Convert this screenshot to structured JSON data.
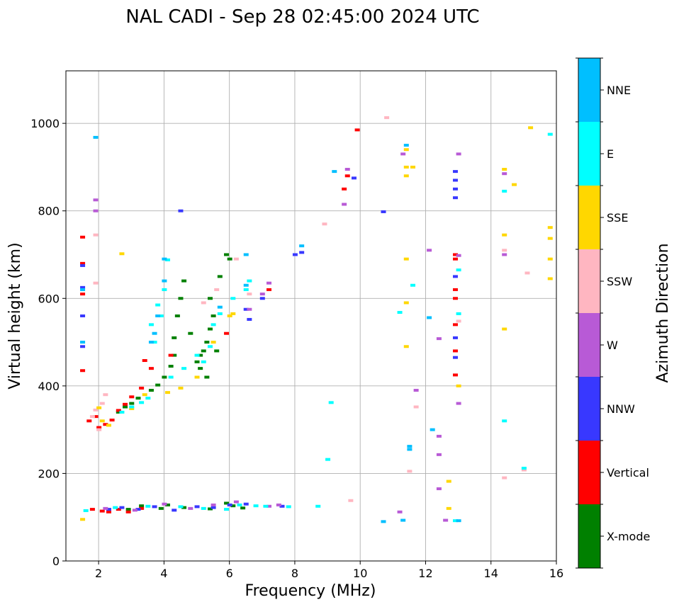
{
  "chart_data": {
    "type": "scatter",
    "title": "NAL CADI - Sep 28 02:45:00 2024 UTC",
    "xlabel": "Frequency (MHz)",
    "ylabel": "Virtual height (km)",
    "xlim": [
      1.0,
      16.0
    ],
    "ylim": [
      0,
      1120
    ],
    "xticks": [
      2,
      4,
      6,
      8,
      10,
      12,
      14,
      16
    ],
    "yticks": [
      0,
      200,
      400,
      600,
      800,
      1000
    ],
    "xtick_labels": [
      "2",
      "4",
      "6",
      "8",
      "10",
      "12",
      "14",
      "16"
    ],
    "ytick_labels": [
      "0",
      "200",
      "400",
      "600",
      "800",
      "1000"
    ],
    "grid": true,
    "colorbar": {
      "label": "Azimuth Direction",
      "categories": [
        "X-mode",
        "Vertical",
        "NNW",
        "W",
        "SSW",
        "SSE",
        "E",
        "NNE"
      ],
      "colors": [
        "#008000",
        "#ff0000",
        "#3838ff",
        "#b85ad6",
        "#ffb6c1",
        "#ffd700",
        "#00ffff",
        "#00bfff"
      ]
    },
    "series": [
      {
        "name": "X-mode",
        "points": [
          [
            2.9,
            118
          ],
          [
            3.3,
            126
          ],
          [
            3.9,
            120
          ],
          [
            4.1,
            128
          ],
          [
            4.6,
            122
          ],
          [
            5.4,
            119
          ],
          [
            5.9,
            132
          ],
          [
            6.1,
            126
          ],
          [
            6.4,
            121
          ],
          [
            2.6,
            340
          ],
          [
            2.8,
            352
          ],
          [
            3.0,
            360
          ],
          [
            3.2,
            372
          ],
          [
            3.6,
            390
          ],
          [
            3.8,
            402
          ],
          [
            4.0,
            420
          ],
          [
            4.2,
            445
          ],
          [
            4.3,
            470
          ],
          [
            4.3,
            510
          ],
          [
            4.4,
            560
          ],
          [
            4.5,
            600
          ],
          [
            4.6,
            640
          ],
          [
            4.8,
            520
          ],
          [
            5.0,
            455
          ],
          [
            5.1,
            470
          ],
          [
            5.2,
            480
          ],
          [
            5.3,
            500
          ],
          [
            5.4,
            530
          ],
          [
            5.5,
            560
          ],
          [
            5.4,
            600
          ],
          [
            5.7,
            650
          ],
          [
            5.9,
            700
          ],
          [
            6.0,
            690
          ],
          [
            5.1,
            440
          ],
          [
            5.3,
            420
          ],
          [
            5.6,
            480
          ]
        ]
      },
      {
        "name": "Vertical",
        "points": [
          [
            1.5,
            435
          ],
          [
            1.5,
            610
          ],
          [
            1.5,
            680
          ],
          [
            1.5,
            740
          ],
          [
            1.7,
            320
          ],
          [
            1.9,
            330
          ],
          [
            2.0,
            305
          ],
          [
            2.2,
            312
          ],
          [
            2.4,
            322
          ],
          [
            2.6,
            344
          ],
          [
            2.8,
            358
          ],
          [
            3.0,
            375
          ],
          [
            3.3,
            395
          ],
          [
            3.6,
            440
          ],
          [
            1.8,
            118
          ],
          [
            2.1,
            114
          ],
          [
            2.3,
            112
          ],
          [
            2.6,
            118
          ],
          [
            2.9,
            112
          ],
          [
            3.3,
            120
          ],
          [
            3.4,
            458
          ],
          [
            4.2,
            470
          ],
          [
            5.9,
            520
          ],
          [
            7.2,
            620
          ],
          [
            9.5,
            850
          ],
          [
            9.6,
            880
          ],
          [
            9.9,
            985
          ],
          [
            12.9,
            425
          ],
          [
            12.9,
            480
          ],
          [
            12.9,
            540
          ],
          [
            12.9,
            600
          ],
          [
            12.9,
            620
          ],
          [
            12.9,
            700
          ],
          [
            12.9,
            690
          ]
        ]
      },
      {
        "name": "NNW",
        "points": [
          [
            1.5,
            490
          ],
          [
            1.5,
            560
          ],
          [
            1.5,
            625
          ],
          [
            1.5,
            675
          ],
          [
            2.3,
            118
          ],
          [
            2.7,
            122
          ],
          [
            3.2,
            118
          ],
          [
            3.7,
            124
          ],
          [
            4.3,
            116
          ],
          [
            5.0,
            124
          ],
          [
            5.5,
            122
          ],
          [
            6.0,
            128
          ],
          [
            6.5,
            130
          ],
          [
            7.6,
            125
          ],
          [
            7.0,
            600
          ],
          [
            6.5,
            575
          ],
          [
            6.6,
            552
          ],
          [
            4.5,
            800
          ],
          [
            8.2,
            705
          ],
          [
            8.0,
            700
          ],
          [
            9.8,
            875
          ],
          [
            10.7,
            798
          ],
          [
            12.9,
            890
          ],
          [
            12.9,
            870
          ],
          [
            12.9,
            850
          ],
          [
            12.9,
            830
          ],
          [
            12.9,
            650
          ],
          [
            12.9,
            510
          ],
          [
            12.9,
            465
          ]
        ]
      },
      {
        "name": "W",
        "points": [
          [
            1.9,
            800
          ],
          [
            1.9,
            825
          ],
          [
            2.2,
            120
          ],
          [
            3.1,
            116
          ],
          [
            4.0,
            130
          ],
          [
            4.8,
            120
          ],
          [
            5.5,
            128
          ],
          [
            6.2,
            135
          ],
          [
            7.2,
            125
          ],
          [
            7.5,
            128
          ],
          [
            6.6,
            575
          ],
          [
            7.2,
            635
          ],
          [
            7.0,
            610
          ],
          [
            9.5,
            815
          ],
          [
            9.6,
            895
          ],
          [
            11.3,
            930
          ],
          [
            12.1,
            710
          ],
          [
            12.4,
            508
          ],
          [
            12.4,
            285
          ],
          [
            12.4,
            243
          ],
          [
            12.4,
            165
          ],
          [
            12.6,
            93
          ],
          [
            13.0,
            930
          ],
          [
            13.0,
            698
          ],
          [
            13.0,
            360
          ],
          [
            11.2,
            112
          ],
          [
            11.7,
            390
          ],
          [
            14.4,
            885
          ],
          [
            14.4,
            700
          ]
        ]
      },
      {
        "name": "SSW",
        "points": [
          [
            1.8,
            330
          ],
          [
            1.9,
            345
          ],
          [
            2.1,
            360
          ],
          [
            1.9,
            745
          ],
          [
            1.9,
            635
          ],
          [
            2.0,
            300
          ],
          [
            2.2,
            380
          ],
          [
            5.2,
            590
          ],
          [
            5.6,
            620
          ],
          [
            6.2,
            690
          ],
          [
            6.6,
            610
          ],
          [
            8.9,
            770
          ],
          [
            9.7,
            138
          ],
          [
            10.8,
            1013
          ],
          [
            11.5,
            205
          ],
          [
            11.7,
            352
          ],
          [
            13.0,
            548
          ],
          [
            14.4,
            190
          ],
          [
            14.4,
            710
          ],
          [
            15.1,
            658
          ],
          [
            15.0,
            208
          ]
        ]
      },
      {
        "name": "SSE",
        "points": [
          [
            1.5,
            95
          ],
          [
            2.0,
            350
          ],
          [
            2.1,
            320
          ],
          [
            2.3,
            310
          ],
          [
            2.7,
            702
          ],
          [
            3.0,
            348
          ],
          [
            3.4,
            380
          ],
          [
            4.1,
            385
          ],
          [
            4.5,
            395
          ],
          [
            5.0,
            420
          ],
          [
            5.5,
            500
          ],
          [
            6.0,
            560
          ],
          [
            6.1,
            565
          ],
          [
            11.4,
            490
          ],
          [
            11.4,
            590
          ],
          [
            11.4,
            690
          ],
          [
            11.4,
            880
          ],
          [
            11.4,
            900
          ],
          [
            11.4,
            940
          ],
          [
            11.6,
            900
          ],
          [
            12.7,
            120
          ],
          [
            12.7,
            182
          ],
          [
            13.0,
            400
          ],
          [
            14.4,
            895
          ],
          [
            14.4,
            745
          ],
          [
            14.4,
            530
          ],
          [
            14.7,
            860
          ],
          [
            15.2,
            990
          ],
          [
            15.8,
            762
          ],
          [
            15.8,
            737
          ],
          [
            15.8,
            690
          ],
          [
            15.8,
            645
          ]
        ]
      },
      {
        "name": "E",
        "points": [
          [
            1.6,
            115
          ],
          [
            2.5,
            122
          ],
          [
            3.5,
            125
          ],
          [
            4.5,
            124
          ],
          [
            5.2,
            120
          ],
          [
            5.9,
            118
          ],
          [
            6.3,
            128
          ],
          [
            6.8,
            126
          ],
          [
            7.1,
            125
          ],
          [
            7.8,
            124
          ],
          [
            8.7,
            125
          ],
          [
            2.7,
            340
          ],
          [
            3.0,
            352
          ],
          [
            3.3,
            362
          ],
          [
            3.5,
            372
          ],
          [
            3.7,
            500
          ],
          [
            3.9,
            560
          ],
          [
            4.0,
            620
          ],
          [
            4.1,
            688
          ],
          [
            3.6,
            540
          ],
          [
            3.8,
            585
          ],
          [
            4.2,
            420
          ],
          [
            4.6,
            440
          ],
          [
            5.0,
            470
          ],
          [
            5.2,
            455
          ],
          [
            5.4,
            490
          ],
          [
            5.5,
            540
          ],
          [
            5.7,
            565
          ],
          [
            6.1,
            600
          ],
          [
            6.5,
            620
          ],
          [
            6.6,
            640
          ],
          [
            9.0,
            232
          ],
          [
            9.1,
            362
          ],
          [
            11.2,
            568
          ],
          [
            11.6,
            630
          ],
          [
            12.9,
            92
          ],
          [
            13.0,
            565
          ],
          [
            13.0,
            665
          ],
          [
            14.4,
            320
          ],
          [
            14.4,
            845
          ],
          [
            15.0,
            212
          ],
          [
            15.8,
            975
          ]
        ]
      },
      {
        "name": "NNE",
        "points": [
          [
            1.5,
            500
          ],
          [
            1.5,
            620
          ],
          [
            1.9,
            968
          ],
          [
            3.6,
            500
          ],
          [
            3.7,
            520
          ],
          [
            3.8,
            560
          ],
          [
            4.0,
            640
          ],
          [
            4.0,
            690
          ],
          [
            5.7,
            580
          ],
          [
            6.5,
            630
          ],
          [
            6.5,
            700
          ],
          [
            8.2,
            720
          ],
          [
            9.2,
            890
          ],
          [
            10.7,
            90
          ],
          [
            11.3,
            93
          ],
          [
            11.4,
            950
          ],
          [
            11.5,
            255
          ],
          [
            11.5,
            262
          ],
          [
            12.1,
            556
          ],
          [
            12.2,
            300
          ],
          [
            13.0,
            92
          ]
        ]
      }
    ]
  }
}
